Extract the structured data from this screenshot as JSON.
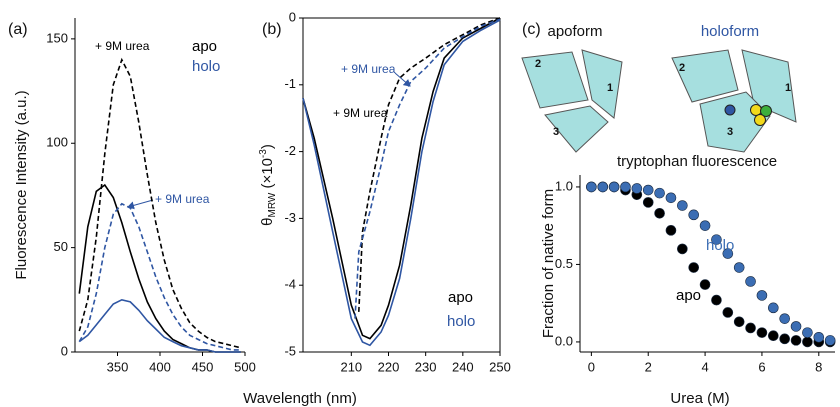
{
  "chart_data": [
    {
      "type": "line",
      "panel": "(a)",
      "xlabel": "Wavelength (nm)",
      "ylabel": "Fluorescence Intensity (a.u.)",
      "xlim": [
        300,
        500
      ],
      "ylim": [
        0,
        160
      ],
      "xticks": [
        350,
        400,
        450,
        500
      ],
      "yticks": [
        0,
        50,
        100,
        150
      ],
      "x": [
        305,
        315,
        325,
        335,
        345,
        355,
        365,
        375,
        385,
        395,
        405,
        415,
        425,
        435,
        445,
        455,
        465,
        475,
        485,
        495
      ],
      "series": [
        {
          "name": "apo",
          "color": "#000000",
          "dashed": false,
          "values": [
            28,
            60,
            77,
            80,
            74,
            62,
            48,
            35,
            24,
            16,
            10,
            6,
            4,
            2,
            1,
            1,
            0,
            0,
            0,
            0
          ]
        },
        {
          "name": "+ 9M urea",
          "color": "#000000",
          "dashed": true,
          "values": [
            10,
            25,
            55,
            95,
            128,
            140,
            132,
            110,
            85,
            62,
            44,
            30,
            21,
            14,
            10,
            7,
            5,
            4,
            3,
            2
          ]
        },
        {
          "name": "holo",
          "color": "#2f56a3",
          "dashed": false,
          "values": [
            5,
            8,
            13,
            18,
            23,
            25,
            24,
            20,
            15,
            11,
            7,
            5,
            3,
            2,
            1,
            1,
            0,
            0,
            0,
            0
          ]
        },
        {
          "name": "+ 9M urea",
          "color": "#2f56a3",
          "dashed": true,
          "values": [
            5,
            12,
            28,
            50,
            66,
            71,
            69,
            60,
            48,
            36,
            26,
            18,
            12,
            8,
            6,
            4,
            3,
            2,
            1,
            1
          ]
        }
      ]
    },
    {
      "type": "line",
      "panel": "(b)",
      "ylabel_parts": [
        "θ",
        "MRW",
        " (×10",
        "-3",
        ")"
      ],
      "xlim": [
        197,
        250
      ],
      "ylim": [
        -5,
        0
      ],
      "xticks": [
        210,
        220,
        230,
        240,
        250
      ],
      "yticks": [
        -5,
        -4,
        -3,
        -2,
        -1,
        0
      ],
      "series": [
        {
          "name": "apo",
          "color": "#000000",
          "dashed": false,
          "x": [
            197,
            200,
            205,
            210,
            213,
            215,
            218,
            220,
            223,
            226,
            229,
            232,
            235,
            240,
            245,
            250
          ],
          "values": [
            -1.2,
            -1.8,
            -3.0,
            -4.3,
            -4.75,
            -4.8,
            -4.6,
            -4.3,
            -3.7,
            -2.8,
            -1.8,
            -1.1,
            -0.6,
            -0.3,
            -0.15,
            0
          ]
        },
        {
          "name": "+ 9M urea",
          "color": "#000000",
          "dashed": true,
          "x": [
            212,
            213,
            215,
            218,
            220,
            223,
            226,
            230,
            235,
            240,
            245,
            250
          ],
          "values": [
            -4.4,
            -3.2,
            -2.6,
            -1.8,
            -1.3,
            -0.9,
            -0.75,
            -0.6,
            -0.4,
            -0.25,
            -0.1,
            0
          ]
        },
        {
          "name": "holo",
          "color": "#2f56a3",
          "dashed": false,
          "x": [
            197,
            200,
            205,
            210,
            213,
            215,
            218,
            220,
            223,
            226,
            229,
            232,
            235,
            240,
            245,
            250
          ],
          "values": [
            -1.2,
            -1.9,
            -3.2,
            -4.5,
            -4.85,
            -4.9,
            -4.7,
            -4.45,
            -3.9,
            -3.0,
            -2.0,
            -1.25,
            -0.7,
            -0.35,
            -0.18,
            -0.03
          ]
        },
        {
          "name": "+ 9M urea",
          "color": "#2f56a3",
          "dashed": true,
          "x": [
            211,
            212,
            215,
            218,
            220,
            223,
            226,
            230,
            235,
            240,
            245,
            250
          ],
          "values": [
            -4.5,
            -3.5,
            -2.9,
            -2.2,
            -1.7,
            -1.3,
            -0.95,
            -0.75,
            -0.45,
            -0.28,
            -0.12,
            -0.02
          ]
        }
      ]
    },
    {
      "type": "scatter",
      "panel": "(c)",
      "title": "tryptophan fluorescence",
      "xlabel": "Urea (M)",
      "ylabel": "Fraction of native form",
      "schematic": {
        "apoform": "apoform",
        "holoform": "holoform",
        "apo_domains": [
          "2",
          "1",
          "3"
        ],
        "holo_domains": [
          "2",
          "1",
          "3"
        ]
      },
      "xlim": [
        -0.4,
        8.57
      ],
      "ylim": [
        -0.065,
        1.077
      ],
      "xticks": [
        0,
        2,
        4,
        6,
        8
      ],
      "yticks": [
        {
          "value": 0,
          "label": "0.0"
        },
        {
          "value": 0.5,
          "label": "0.5"
        },
        {
          "value": 1,
          "label": "1.0"
        }
      ],
      "x": [
        0,
        0.4,
        0.8,
        1.2,
        1.6,
        2.0,
        2.4,
        2.8,
        3.2,
        3.6,
        4.0,
        4.4,
        4.8,
        5.2,
        5.6,
        6.0,
        6.4,
        6.8,
        7.2,
        7.6,
        8.0,
        8.4
      ],
      "series": [
        {
          "name": "apo",
          "color": "#000000",
          "values": [
            1.0,
            1.0,
            1.0,
            0.98,
            0.95,
            0.9,
            0.83,
            0.72,
            0.6,
            0.48,
            0.37,
            0.27,
            0.19,
            0.13,
            0.09,
            0.06,
            0.04,
            0.02,
            0.01,
            0.0,
            0.0,
            0.0
          ]
        },
        {
          "name": "holo",
          "color": "#3b6db3",
          "values": [
            1.0,
            1.0,
            1.0,
            1.0,
            0.99,
            0.98,
            0.96,
            0.93,
            0.88,
            0.82,
            0.75,
            0.66,
            0.57,
            0.48,
            0.39,
            0.3,
            0.22,
            0.15,
            0.1,
            0.06,
            0.03,
            0.01
          ]
        }
      ]
    }
  ]
}
